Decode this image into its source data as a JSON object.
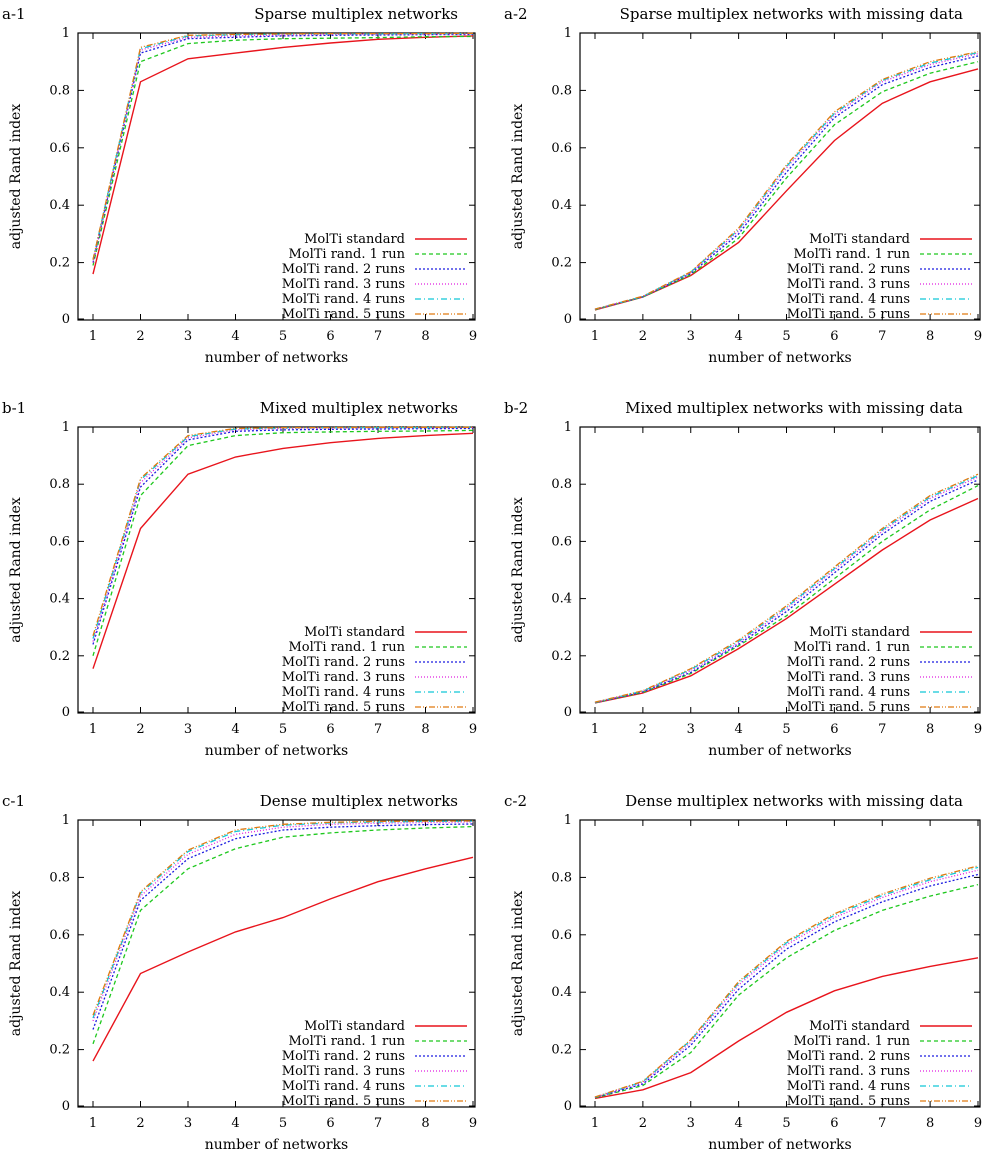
{
  "colors": {
    "MolTi standard": "#e8141c",
    "MolTi rand. 1 run": "#1ec81e",
    "MolTi rand. 2 runs": "#1c1ce0",
    "MolTi rand. 3 runs": "#e01ee0",
    "MolTi rand. 4 runs": "#10c8d8",
    "MolTi rand. 5 runs": "#e07a10"
  },
  "chart_data": [
    {
      "type": "line",
      "panel": "a-1",
      "title": "Sparse multiplex networks",
      "xlabel": "number of networks",
      "ylabel": "adjusted Rand index",
      "xlim": [
        1,
        9
      ],
      "ylim": [
        0,
        1
      ],
      "x": [
        1,
        2,
        3,
        4,
        5,
        6,
        7,
        8,
        9
      ],
      "x_ticks": [
        "1",
        "2",
        "3",
        "4",
        "5",
        "6",
        "7",
        "8",
        "9"
      ],
      "y_ticks": [
        "0",
        "0.2",
        "0.4",
        "0.6",
        "0.8",
        "1"
      ],
      "legend_position": "bottom-right",
      "series": [
        {
          "name": "MolTi standard",
          "values": [
            0.16,
            0.83,
            0.91,
            0.93,
            0.95,
            0.965,
            0.978,
            0.985,
            0.99
          ]
        },
        {
          "name": "MolTi rand. 1 run",
          "values": [
            0.19,
            0.9,
            0.963,
            0.975,
            0.98,
            0.982,
            0.984,
            0.987,
            0.988
          ]
        },
        {
          "name": "MolTi rand. 2 runs",
          "values": [
            0.2,
            0.93,
            0.98,
            0.985,
            0.99,
            0.992,
            0.993,
            0.994,
            0.995
          ]
        },
        {
          "name": "MolTi rand. 3 runs",
          "values": [
            0.2,
            0.94,
            0.985,
            0.99,
            0.993,
            0.995,
            0.996,
            0.996,
            0.997
          ]
        },
        {
          "name": "MolTi rand. 4 runs",
          "values": [
            0.21,
            0.945,
            0.99,
            0.994,
            0.996,
            0.997,
            0.997,
            0.998,
            0.998
          ]
        },
        {
          "name": "MolTi rand. 5 runs",
          "values": [
            0.21,
            0.95,
            0.992,
            0.995,
            0.997,
            0.998,
            0.998,
            0.998,
            0.999
          ]
        }
      ]
    },
    {
      "type": "line",
      "panel": "a-2",
      "title": "Sparse multiplex networks with missing data",
      "xlabel": "number of networks",
      "ylabel": "adjusted Rand index",
      "xlim": [
        1,
        9
      ],
      "ylim": [
        0,
        1
      ],
      "x": [
        1,
        2,
        3,
        4,
        5,
        6,
        7,
        8,
        9
      ],
      "x_ticks": [
        "1",
        "2",
        "3",
        "4",
        "5",
        "6",
        "7",
        "8",
        "9"
      ],
      "y_ticks": [
        "0",
        "0.2",
        "0.4",
        "0.6",
        "0.8",
        "1"
      ],
      "legend_position": "bottom-right",
      "series": [
        {
          "name": "MolTi standard",
          "values": [
            0.035,
            0.08,
            0.155,
            0.27,
            0.45,
            0.625,
            0.755,
            0.83,
            0.875
          ]
        },
        {
          "name": "MolTi rand. 1 run",
          "values": [
            0.036,
            0.08,
            0.158,
            0.285,
            0.495,
            0.68,
            0.795,
            0.86,
            0.9
          ]
        },
        {
          "name": "MolTi rand. 2 runs",
          "values": [
            0.037,
            0.081,
            0.162,
            0.3,
            0.515,
            0.705,
            0.82,
            0.88,
            0.92
          ]
        },
        {
          "name": "MolTi rand. 3 runs",
          "values": [
            0.037,
            0.082,
            0.165,
            0.31,
            0.53,
            0.715,
            0.83,
            0.89,
            0.928
          ]
        },
        {
          "name": "MolTi rand. 4 runs",
          "values": [
            0.038,
            0.082,
            0.167,
            0.315,
            0.535,
            0.72,
            0.835,
            0.895,
            0.932
          ]
        },
        {
          "name": "MolTi rand. 5 runs",
          "values": [
            0.038,
            0.083,
            0.168,
            0.32,
            0.54,
            0.725,
            0.838,
            0.9,
            0.935
          ]
        }
      ]
    },
    {
      "type": "line",
      "panel": "b-1",
      "title": "Mixed multiplex networks",
      "xlabel": "number of networks",
      "ylabel": "adjusted Rand index",
      "xlim": [
        1,
        9
      ],
      "ylim": [
        0,
        1
      ],
      "x": [
        1,
        2,
        3,
        4,
        5,
        6,
        7,
        8,
        9
      ],
      "x_ticks": [
        "1",
        "2",
        "3",
        "4",
        "5",
        "6",
        "7",
        "8",
        "9"
      ],
      "y_ticks": [
        "0",
        "0.2",
        "0.4",
        "0.6",
        "0.8",
        "1"
      ],
      "legend_position": "bottom-right",
      "series": [
        {
          "name": "MolTi standard",
          "values": [
            0.155,
            0.645,
            0.835,
            0.895,
            0.925,
            0.945,
            0.96,
            0.97,
            0.978
          ]
        },
        {
          "name": "MolTi rand. 1 run",
          "values": [
            0.2,
            0.76,
            0.935,
            0.97,
            0.98,
            0.983,
            0.985,
            0.986,
            0.988
          ]
        },
        {
          "name": "MolTi rand. 2 runs",
          "values": [
            0.24,
            0.79,
            0.955,
            0.985,
            0.99,
            0.992,
            0.993,
            0.994,
            0.995
          ]
        },
        {
          "name": "MolTi rand. 3 runs",
          "values": [
            0.25,
            0.805,
            0.962,
            0.99,
            0.995,
            0.996,
            0.997,
            0.997,
            0.998
          ]
        },
        {
          "name": "MolTi rand. 4 runs",
          "values": [
            0.26,
            0.815,
            0.966,
            0.993,
            0.997,
            0.998,
            0.998,
            0.998,
            0.999
          ]
        },
        {
          "name": "MolTi rand. 5 runs",
          "values": [
            0.27,
            0.82,
            0.97,
            0.995,
            0.998,
            0.998,
            0.999,
            0.999,
            0.999
          ]
        }
      ]
    },
    {
      "type": "line",
      "panel": "b-2",
      "title": "Mixed multiplex networks with missing data",
      "xlabel": "number of networks",
      "ylabel": "adjusted Rand index",
      "xlim": [
        1,
        9
      ],
      "ylim": [
        0,
        1
      ],
      "x": [
        1,
        2,
        3,
        4,
        5,
        6,
        7,
        8,
        9
      ],
      "x_ticks": [
        "1",
        "2",
        "3",
        "4",
        "5",
        "6",
        "7",
        "8",
        "9"
      ],
      "y_ticks": [
        "0",
        "0.2",
        "0.4",
        "0.6",
        "0.8",
        "1"
      ],
      "legend_position": "bottom-right",
      "series": [
        {
          "name": "MolTi standard",
          "values": [
            0.035,
            0.07,
            0.13,
            0.225,
            0.33,
            0.45,
            0.57,
            0.675,
            0.75
          ]
        },
        {
          "name": "MolTi rand. 1 run",
          "values": [
            0.036,
            0.072,
            0.138,
            0.235,
            0.34,
            0.47,
            0.6,
            0.71,
            0.795
          ]
        },
        {
          "name": "MolTi rand. 2 runs",
          "values": [
            0.036,
            0.074,
            0.142,
            0.24,
            0.355,
            0.49,
            0.625,
            0.74,
            0.815
          ]
        },
        {
          "name": "MolTi rand. 3 runs",
          "values": [
            0.037,
            0.076,
            0.148,
            0.245,
            0.365,
            0.5,
            0.635,
            0.75,
            0.825
          ]
        },
        {
          "name": "MolTi rand. 4 runs",
          "values": [
            0.037,
            0.077,
            0.152,
            0.25,
            0.37,
            0.505,
            0.64,
            0.755,
            0.83
          ]
        },
        {
          "name": "MolTi rand. 5 runs",
          "values": [
            0.038,
            0.078,
            0.155,
            0.255,
            0.375,
            0.51,
            0.645,
            0.76,
            0.835
          ]
        }
      ]
    },
    {
      "type": "line",
      "panel": "c-1",
      "title": "Dense multiplex networks",
      "xlabel": "number of networks",
      "ylabel": "adjusted Rand index",
      "xlim": [
        1,
        9
      ],
      "ylim": [
        0,
        1
      ],
      "x": [
        1,
        2,
        3,
        4,
        5,
        6,
        7,
        8,
        9
      ],
      "x_ticks": [
        "1",
        "2",
        "3",
        "4",
        "5",
        "6",
        "7",
        "8",
        "9"
      ],
      "y_ticks": [
        "0",
        "0.2",
        "0.4",
        "0.6",
        "0.8",
        "1"
      ],
      "legend_position": "bottom-right",
      "series": [
        {
          "name": "MolTi standard",
          "values": [
            0.16,
            0.465,
            0.54,
            0.61,
            0.66,
            0.725,
            0.785,
            0.83,
            0.87
          ]
        },
        {
          "name": "MolTi rand. 1 run",
          "values": [
            0.22,
            0.685,
            0.83,
            0.9,
            0.94,
            0.955,
            0.965,
            0.972,
            0.977
          ]
        },
        {
          "name": "MolTi rand. 2 runs",
          "values": [
            0.27,
            0.72,
            0.865,
            0.935,
            0.965,
            0.975,
            0.98,
            0.984,
            0.986
          ]
        },
        {
          "name": "MolTi rand. 3 runs",
          "values": [
            0.3,
            0.735,
            0.88,
            0.95,
            0.975,
            0.985,
            0.989,
            0.991,
            0.993
          ]
        },
        {
          "name": "MolTi rand. 4 runs",
          "values": [
            0.31,
            0.745,
            0.89,
            0.96,
            0.982,
            0.99,
            0.993,
            0.995,
            0.996
          ]
        },
        {
          "name": "MolTi rand. 5 runs",
          "values": [
            0.32,
            0.75,
            0.895,
            0.965,
            0.985,
            0.992,
            0.995,
            0.996,
            0.997
          ]
        }
      ]
    },
    {
      "type": "line",
      "panel": "c-2",
      "title": "Dense multiplex networks with missing data",
      "xlabel": "number of networks",
      "ylabel": "adjusted Rand index",
      "xlim": [
        1,
        9
      ],
      "ylim": [
        0,
        1
      ],
      "x": [
        1,
        2,
        3,
        4,
        5,
        6,
        7,
        8,
        9
      ],
      "x_ticks": [
        "1",
        "2",
        "3",
        "4",
        "5",
        "6",
        "7",
        "8",
        "9"
      ],
      "y_ticks": [
        "0",
        "0.2",
        "0.4",
        "0.6",
        "0.8",
        "1"
      ],
      "legend_position": "bottom-right",
      "series": [
        {
          "name": "MolTi standard",
          "values": [
            0.03,
            0.06,
            0.12,
            0.23,
            0.33,
            0.405,
            0.455,
            0.49,
            0.52
          ]
        },
        {
          "name": "MolTi rand. 1 run",
          "values": [
            0.032,
            0.075,
            0.19,
            0.39,
            0.52,
            0.615,
            0.685,
            0.735,
            0.775
          ]
        },
        {
          "name": "MolTi rand. 2 runs",
          "values": [
            0.033,
            0.08,
            0.215,
            0.41,
            0.55,
            0.645,
            0.715,
            0.77,
            0.81
          ]
        },
        {
          "name": "MolTi rand. 3 runs",
          "values": [
            0.034,
            0.085,
            0.225,
            0.425,
            0.565,
            0.66,
            0.73,
            0.785,
            0.825
          ]
        },
        {
          "name": "MolTi rand. 4 runs",
          "values": [
            0.034,
            0.088,
            0.232,
            0.432,
            0.572,
            0.668,
            0.737,
            0.792,
            0.835
          ]
        },
        {
          "name": "MolTi rand. 5 runs",
          "values": [
            0.035,
            0.09,
            0.235,
            0.437,
            0.577,
            0.673,
            0.742,
            0.797,
            0.84
          ]
        }
      ]
    }
  ]
}
